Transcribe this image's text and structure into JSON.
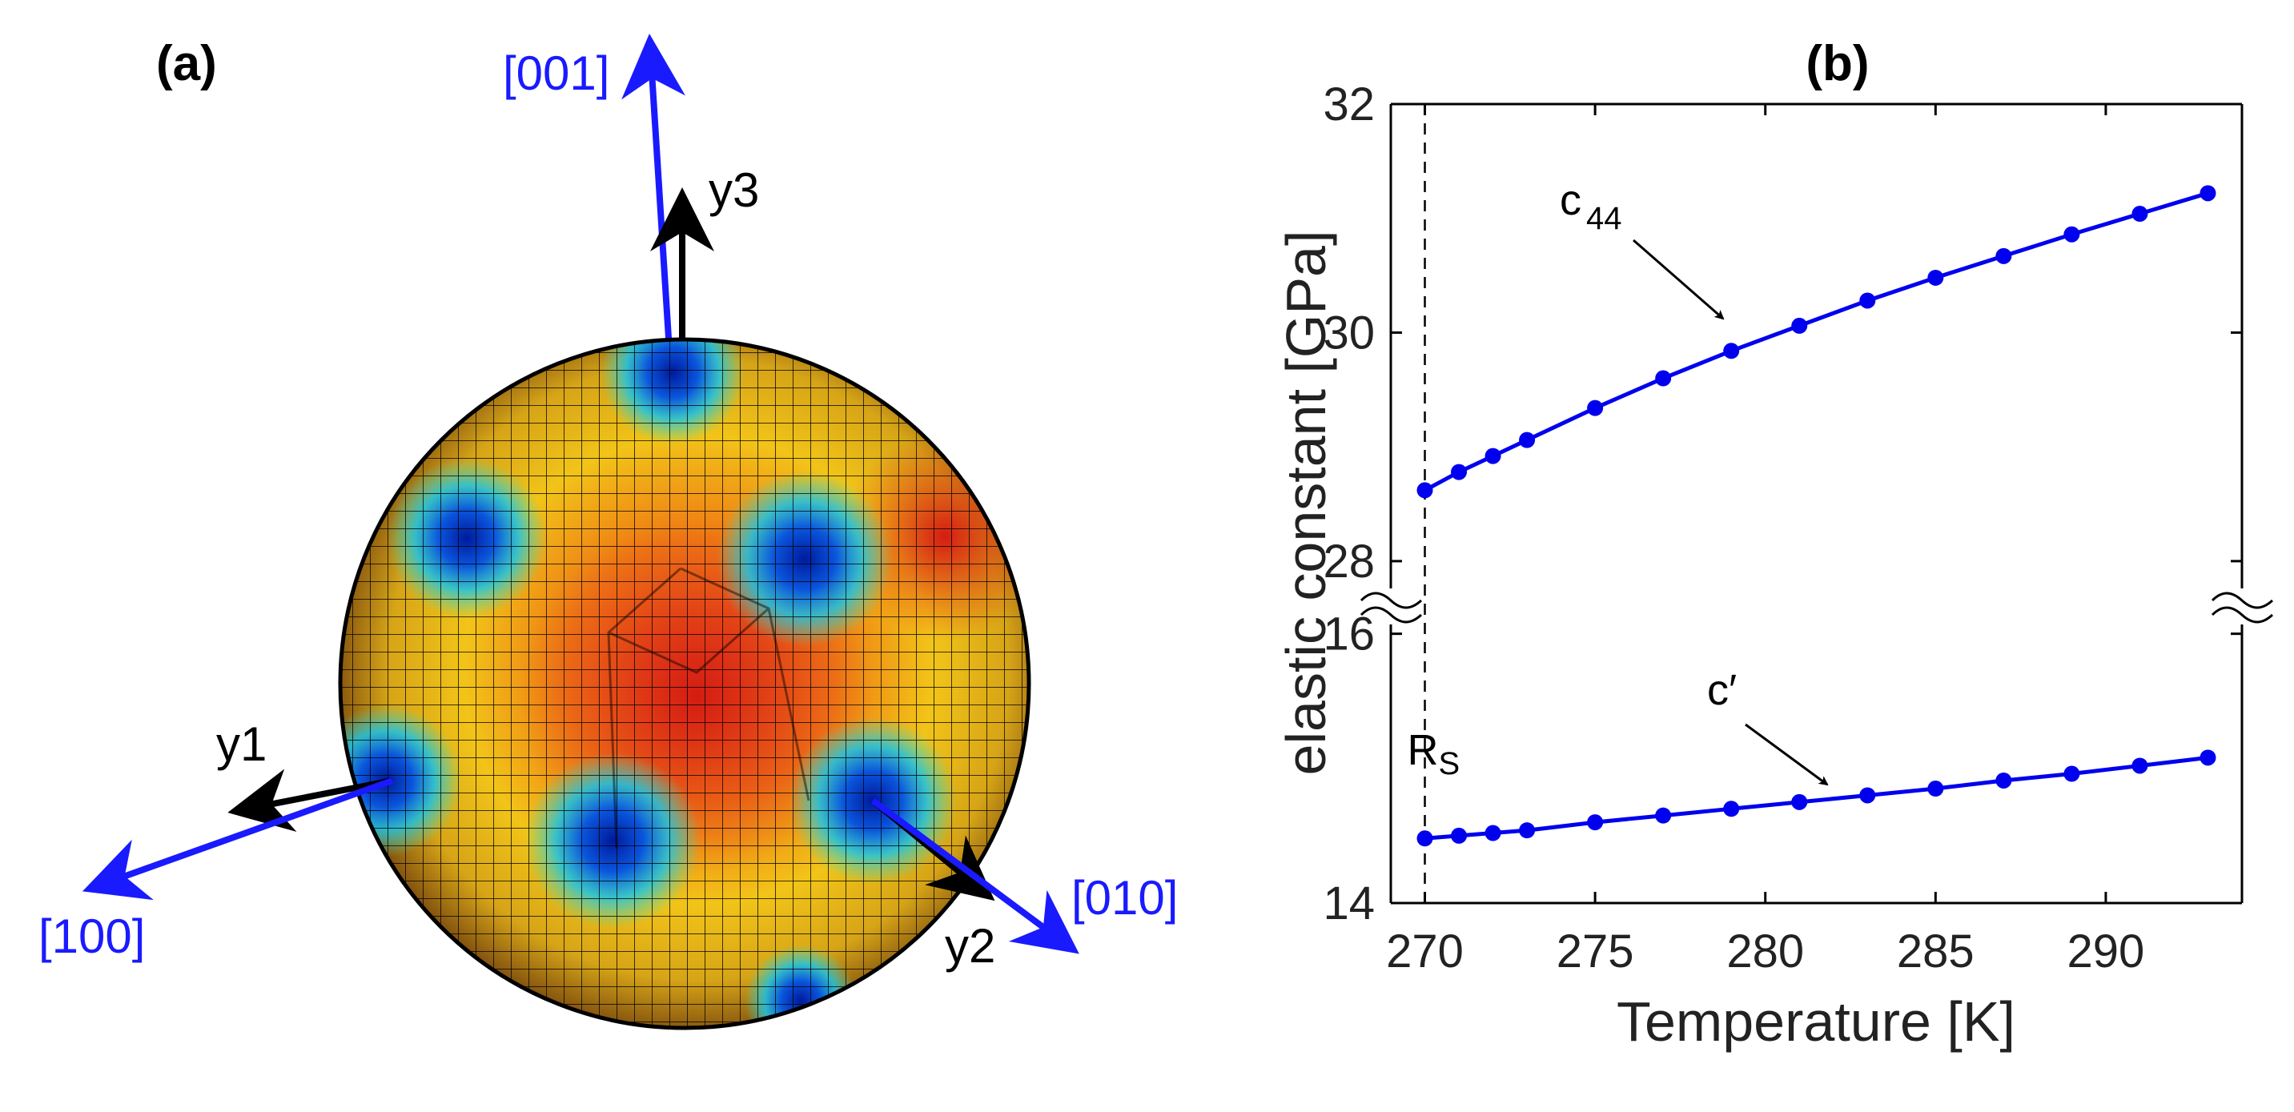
{
  "panel_a": {
    "label": "(a)",
    "crystal_axes": {
      "x100": "[100]",
      "x010": "[010]",
      "x001": "[001]",
      "color": "#1a1aff"
    },
    "sample_axes": {
      "y1": "y1",
      "y2": "y2",
      "y3": "y3",
      "color": "#000000"
    }
  },
  "chart_data": {
    "type": "line",
    "panel_label": "(b)",
    "xlabel": "Temperature [K]",
    "ylabel": "elastic constant [GPa]",
    "xlim": [
      269,
      294
    ],
    "x_ticks": [
      270,
      275,
      280,
      285,
      290
    ],
    "x_tick_labels": [
      "270",
      "275",
      "280",
      "285",
      "290"
    ],
    "broken_y_axis": true,
    "upper_ylim": [
      27.6,
      32
    ],
    "upper_y_ticks": [
      28,
      30,
      32
    ],
    "upper_y_tick_labels": [
      "28",
      "30",
      "32"
    ],
    "lower_ylim": [
      14,
      16.2
    ],
    "lower_y_ticks": [
      14,
      16
    ],
    "lower_y_tick_labels": [
      "14",
      "16"
    ],
    "series_color": "#0000ee",
    "series": [
      {
        "name": "c44",
        "label_main": "c",
        "label_sub": "44",
        "segment": "upper",
        "x": [
          270,
          271,
          272,
          273,
          275,
          277,
          279,
          281,
          283,
          285,
          287,
          289,
          291,
          293
        ],
        "values": [
          28.62,
          28.78,
          28.92,
          29.06,
          29.34,
          29.6,
          29.84,
          30.06,
          30.28,
          30.48,
          30.67,
          30.86,
          31.04,
          31.22
        ]
      },
      {
        "name": "c'",
        "label_main": "c′",
        "label_sub": "",
        "segment": "lower",
        "x": [
          270,
          271,
          272,
          273,
          275,
          277,
          279,
          281,
          283,
          285,
          287,
          289,
          291,
          293
        ],
        "values": [
          14.48,
          14.5,
          14.52,
          14.54,
          14.6,
          14.65,
          14.7,
          14.75,
          14.8,
          14.85,
          14.91,
          14.96,
          15.02,
          15.08
        ]
      }
    ],
    "vline": {
      "x": 270,
      "label_main": "R",
      "label_sub": "S",
      "style": "dashed"
    }
  }
}
